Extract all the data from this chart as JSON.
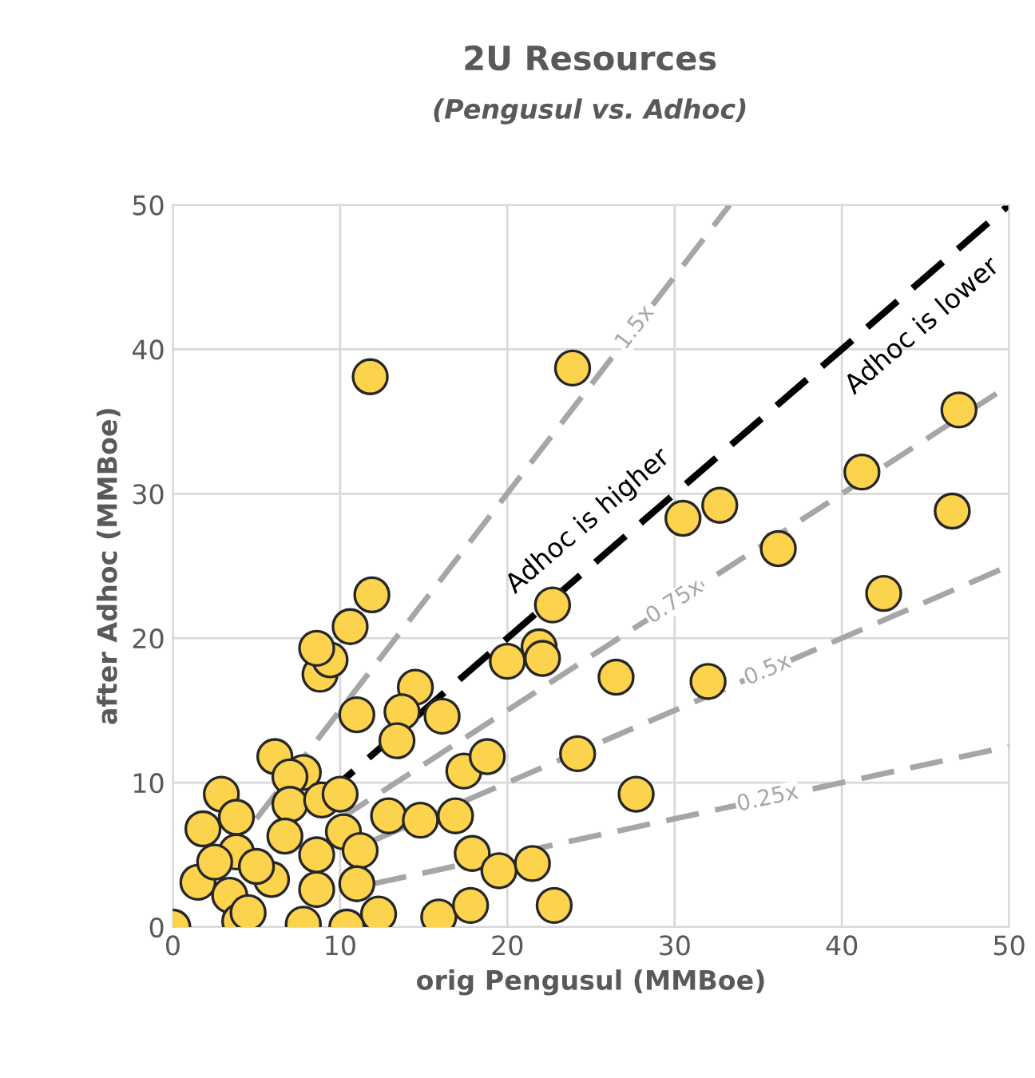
{
  "chart_data": {
    "type": "scatter",
    "title": "2U Resources",
    "subtitle": "(Pengusul vs. Adhoc)",
    "xlabel": "orig Pengusul (MMBoe)",
    "ylabel": "after Adhoc (MMBoe)",
    "xlim": [
      0,
      50
    ],
    "ylim": [
      0,
      50
    ],
    "xticks": [
      0,
      10,
      20,
      30,
      40,
      50
    ],
    "yticks": [
      0,
      10,
      20,
      30,
      40,
      50
    ],
    "grid": true,
    "legend": false,
    "annotations": [
      "Adhoc is higher",
      "Adhoc is lower"
    ],
    "series": [
      {
        "type": "line",
        "name": "1.5x",
        "color": "#a6a6a6",
        "line_style": "dashed",
        "x": [
          5,
          33.3
        ],
        "values": [
          7.5,
          50
        ]
      },
      {
        "type": "line",
        "color": "#000000",
        "line_style": "dashed",
        "x": [
          9,
          50
        ],
        "values": [
          9,
          50
        ]
      },
      {
        "type": "line",
        "name": "0.75x",
        "color": "#a6a6a6",
        "line_style": "dashed",
        "x": [
          10,
          50
        ],
        "values": [
          7.5,
          37.5
        ]
      },
      {
        "type": "line",
        "name": "0.5x",
        "color": "#a6a6a6",
        "line_style": "dashed",
        "x": [
          12,
          50
        ],
        "values": [
          6,
          25
        ]
      },
      {
        "type": "line",
        "name": "0.25x",
        "color": "#a6a6a6",
        "line_style": "dashed",
        "x": [
          12,
          50
        ],
        "values": [
          3,
          12.5
        ]
      },
      {
        "color": "#fcd34d",
        "marker": "circle",
        "x": [
          11.8,
          23.9,
          47.0,
          41.2,
          46.6,
          32.7,
          30.5,
          36.2,
          42.5,
          22.7,
          32.0,
          27.7,
          26.5,
          24.2,
          20.0,
          21.9,
          22.1,
          11.9,
          10.6,
          8.8,
          9.4,
          8.6,
          11.0,
          14.5,
          13.7,
          16.1,
          13.4,
          6.1,
          7.8,
          7.0,
          2.9,
          7.0,
          8.9,
          10.0,
          3.8,
          1.8,
          6.7,
          10.2,
          3.8,
          8.6,
          11.2,
          1.5,
          3.4,
          5.9,
          8.6,
          11.0,
          12.3,
          0,
          4.0,
          7.8,
          10.4,
          15.9,
          12.9,
          14.8,
          16.9,
          17.4,
          18.8,
          17.9,
          19.5,
          21.5,
          22.8,
          17.8,
          2.5,
          5.0,
          4.5
        ],
        "values": [
          38.1,
          38.7,
          35.8,
          31.5,
          28.8,
          29.2,
          28.3,
          26.2,
          23.1,
          22.3,
          17.0,
          9.2,
          17.3,
          12.0,
          18.4,
          19.4,
          18.6,
          23.0,
          20.8,
          17.5,
          18.5,
          19.3,
          14.7,
          16.6,
          14.9,
          14.6,
          12.9,
          11.8,
          10.7,
          10.4,
          9.2,
          8.5,
          8.8,
          9.2,
          7.6,
          6.8,
          6.3,
          6.6,
          5.2,
          5.0,
          5.3,
          3.1,
          2.2,
          3.3,
          2.6,
          3.0,
          0.9,
          0,
          0.4,
          0.2,
          0,
          0.7,
          7.7,
          7.4,
          7.7,
          10.8,
          11.8,
          5.1,
          3.9,
          4.4,
          1.5,
          1.5,
          4.5,
          4.2,
          1.0
        ]
      }
    ]
  }
}
